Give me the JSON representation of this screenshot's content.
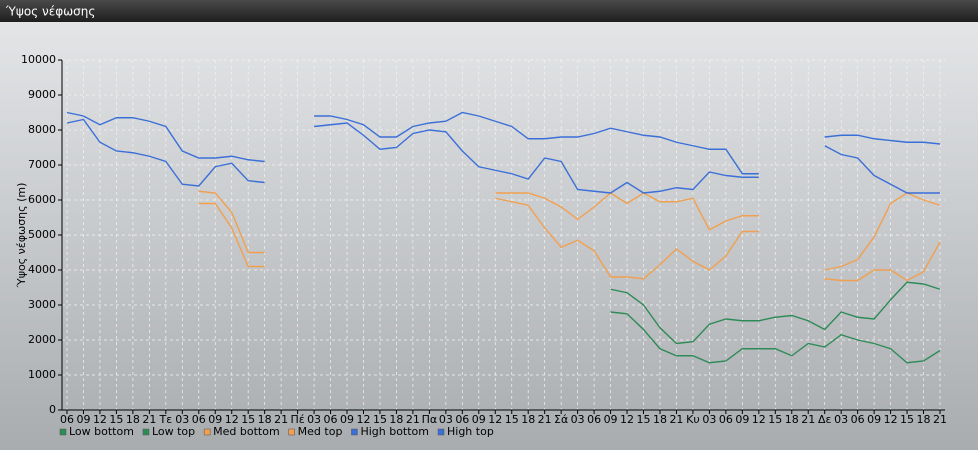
{
  "chart_data": {
    "type": "line",
    "title": "Ύψος νέφωσης",
    "y_label": "Ύψος νέφωσης (m)",
    "categories": [
      "06",
      "09",
      "12",
      "15",
      "18",
      "21",
      "Τε",
      "03",
      "06",
      "09",
      "12",
      "15",
      "18",
      "21",
      "Πέ",
      "03",
      "06",
      "09",
      "12",
      "15",
      "18",
      "21",
      "Πα",
      "03",
      "06",
      "09",
      "12",
      "15",
      "18",
      "21",
      "Σά",
      "03",
      "06",
      "09",
      "12",
      "15",
      "18",
      "21",
      "Κυ",
      "03",
      "06",
      "09",
      "12",
      "15",
      "18",
      "21",
      "Δε",
      "03",
      "06",
      "09",
      "12",
      "15",
      "18",
      "21"
    ],
    "ylim": [
      0,
      10000
    ],
    "yticks": [
      0,
      1000,
      2000,
      3000,
      4000,
      5000,
      6000,
      7000,
      8000,
      9000,
      10000
    ],
    "grid": true,
    "legend": "bottom",
    "series": [
      {
        "name": "Low bottom",
        "color": "#2e8b57",
        "values": [
          null,
          null,
          null,
          null,
          null,
          null,
          null,
          null,
          null,
          null,
          null,
          null,
          null,
          null,
          null,
          null,
          null,
          null,
          null,
          null,
          null,
          null,
          null,
          null,
          null,
          null,
          null,
          null,
          null,
          null,
          null,
          null,
          null,
          2800,
          2750,
          2300,
          1750,
          1550,
          1550,
          1350,
          1400,
          1750,
          1750,
          1750,
          1550,
          1900,
          1800,
          2150,
          2000,
          1900,
          1750,
          1350,
          1400,
          1700
        ]
      },
      {
        "name": "Low top",
        "color": "#2e8b57",
        "values": [
          null,
          null,
          null,
          null,
          null,
          null,
          null,
          null,
          null,
          null,
          null,
          null,
          null,
          null,
          null,
          null,
          null,
          null,
          null,
          null,
          null,
          null,
          null,
          null,
          null,
          null,
          null,
          null,
          null,
          null,
          null,
          null,
          null,
          3450,
          3350,
          3000,
          2350,
          1900,
          1950,
          2450,
          2600,
          2550,
          2550,
          2650,
          2700,
          2550,
          2300,
          2800,
          2650,
          2600,
          3150,
          3650,
          3600,
          3450
        ]
      },
      {
        "name": "Med bottom",
        "color": "#f0a050",
        "values": [
          null,
          null,
          null,
          null,
          null,
          null,
          null,
          null,
          5900,
          5900,
          5200,
          4100,
          4100,
          null,
          null,
          null,
          null,
          null,
          null,
          null,
          null,
          null,
          null,
          null,
          null,
          null,
          6050,
          5950,
          5850,
          5200,
          4650,
          4850,
          4550,
          3800,
          3800,
          3750,
          4150,
          4600,
          4250,
          4000,
          4400,
          5100,
          5100,
          null,
          null,
          null,
          3750,
          3700,
          3700,
          4000,
          4000,
          3700,
          3950,
          4800
        ]
      },
      {
        "name": "Med top",
        "color": "#f0a050",
        "values": [
          null,
          null,
          null,
          null,
          null,
          null,
          null,
          null,
          6250,
          6200,
          5650,
          4500,
          4500,
          null,
          null,
          null,
          null,
          null,
          null,
          null,
          null,
          null,
          null,
          null,
          null,
          null,
          6200,
          6200,
          6200,
          6050,
          5800,
          5450,
          5800,
          6200,
          5900,
          6200,
          5950,
          5950,
          6050,
          5150,
          5400,
          5550,
          5550,
          null,
          null,
          null,
          4000,
          4100,
          4300,
          4950,
          5900,
          6200,
          6000,
          5850
        ]
      },
      {
        "name": "High bottom",
        "color": "#3b6fd8",
        "values": [
          8200,
          8300,
          7650,
          7400,
          7350,
          7250,
          7100,
          6450,
          6400,
          6950,
          7050,
          6550,
          6500,
          null,
          null,
          8100,
          8150,
          8200,
          7850,
          7450,
          7500,
          7900,
          8000,
          7950,
          7400,
          6950,
          6850,
          6750,
          6600,
          7200,
          7100,
          6300,
          6250,
          6200,
          6500,
          6200,
          6250,
          6350,
          6300,
          6800,
          6700,
          6650,
          6650,
          null,
          null,
          null,
          7550,
          7300,
          7200,
          6700,
          6450,
          6200,
          6200,
          6200
        ]
      },
      {
        "name": "High top",
        "color": "#3b6fd8",
        "values": [
          8500,
          8400,
          8150,
          8350,
          8350,
          8250,
          8100,
          7400,
          7200,
          7200,
          7250,
          7150,
          7100,
          null,
          null,
          8400,
          8400,
          8300,
          8150,
          7800,
          7800,
          8100,
          8200,
          8250,
          8500,
          8400,
          8250,
          8100,
          7750,
          7750,
          7800,
          7800,
          7900,
          8050,
          7950,
          7850,
          7800,
          7650,
          7550,
          7450,
          7450,
          6750,
          6750,
          null,
          null,
          null,
          7800,
          7850,
          7850,
          7750,
          7700,
          7650,
          7650,
          7600
        ]
      }
    ]
  }
}
